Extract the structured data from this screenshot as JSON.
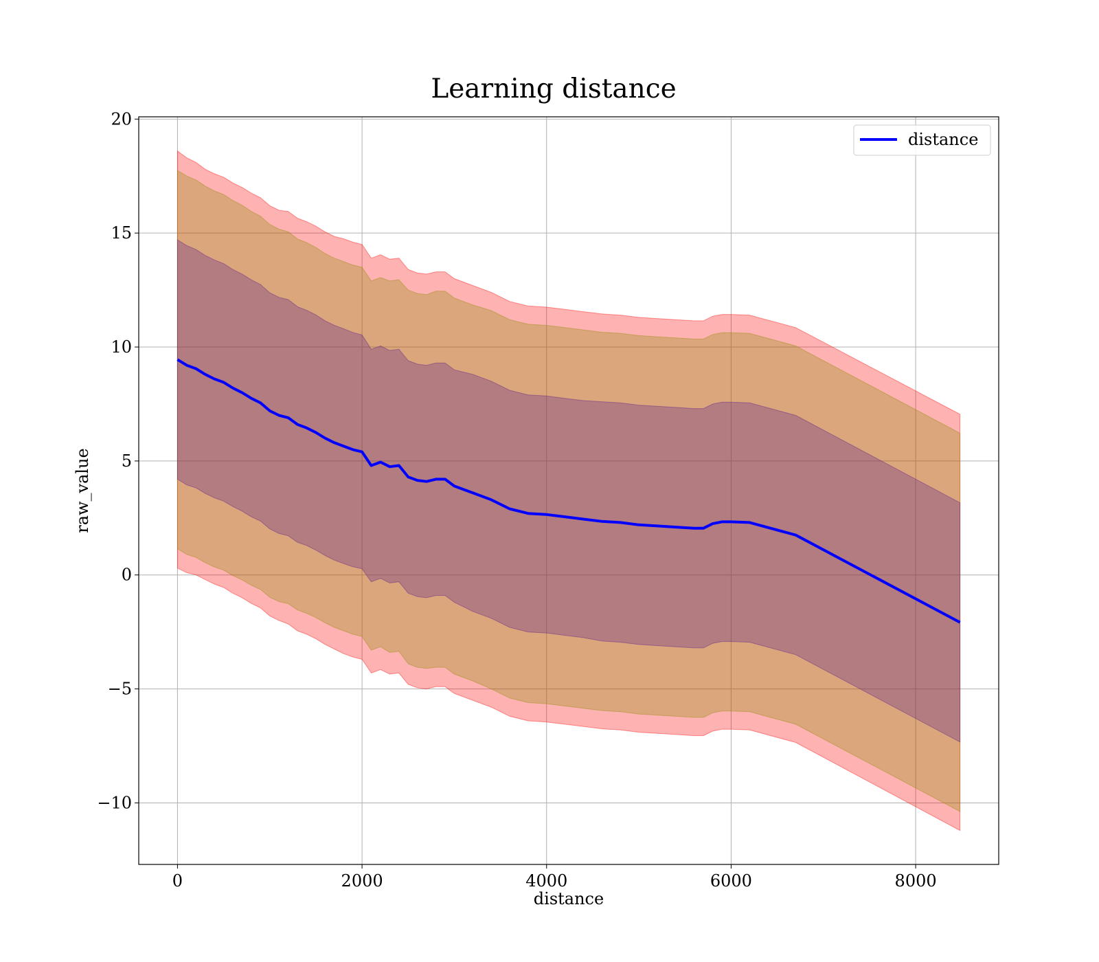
{
  "chart_data": {
    "type": "line",
    "title": "Learning distance",
    "xlabel": "distance",
    "ylabel": "raw_value",
    "xlim": [
      -420,
      8900
    ],
    "ylim": [
      -12.7,
      20.1
    ],
    "xticks": [
      0,
      2000,
      4000,
      6000,
      8000
    ],
    "xtick_labels": [
      "0",
      "2000",
      "4000",
      "6000",
      "8000"
    ],
    "yticks": [
      -10,
      -5,
      0,
      5,
      10,
      15,
      20
    ],
    "ytick_labels": [
      "−10",
      "−5",
      "0",
      "5",
      "10",
      "15",
      "20"
    ],
    "grid": true,
    "legend": {
      "position": "top-right",
      "entries": [
        "distance"
      ]
    },
    "colors": {
      "line": "#0000ff",
      "band_outer": "#ff0000",
      "band_mid": "#8b8b00",
      "band_inner": "#551a8b"
    },
    "x": [
      0,
      100,
      200,
      300,
      400,
      500,
      600,
      700,
      800,
      900,
      1000,
      1100,
      1200,
      1300,
      1400,
      1500,
      1600,
      1700,
      1800,
      1900,
      2000,
      2100,
      2200,
      2300,
      2400,
      2500,
      2600,
      2700,
      2800,
      2900,
      3000,
      3200,
      3400,
      3600,
      3800,
      4000,
      4200,
      4400,
      4600,
      4800,
      5000,
      5200,
      5400,
      5600,
      5700,
      5800,
      5900,
      6000,
      6200,
      6700,
      8480
    ],
    "series": [
      {
        "name": "distance",
        "values": [
          9.45,
          9.2,
          9.05,
          8.8,
          8.6,
          8.45,
          8.2,
          8.0,
          7.75,
          7.55,
          7.2,
          7.0,
          6.9,
          6.6,
          6.45,
          6.25,
          6.0,
          5.8,
          5.65,
          5.5,
          5.4,
          4.8,
          4.95,
          4.75,
          4.8,
          4.3,
          4.15,
          4.1,
          4.2,
          4.2,
          3.9,
          3.6,
          3.3,
          2.9,
          2.7,
          2.65,
          2.55,
          2.45,
          2.35,
          2.3,
          2.2,
          2.15,
          2.1,
          2.05,
          2.05,
          2.25,
          2.33,
          2.33,
          2.3,
          1.75,
          -2.08
        ],
        "band_1std": [
          5.25,
          5.25,
          5.23,
          5.22,
          5.22,
          5.21,
          5.2,
          5.2,
          5.2,
          5.19,
          5.18,
          5.18,
          5.18,
          5.17,
          5.16,
          5.16,
          5.15,
          5.15,
          5.15,
          5.14,
          5.13,
          5.1,
          5.1,
          5.1,
          5.1,
          5.1,
          5.1,
          5.1,
          5.1,
          5.1,
          5.1,
          5.2,
          5.2,
          5.2,
          5.2,
          5.2,
          5.2,
          5.2,
          5.25,
          5.25,
          5.25,
          5.25,
          5.25,
          5.25,
          5.25,
          5.25,
          5.25,
          5.25,
          5.25,
          5.25,
          5.25
        ],
        "band_2std": [
          8.3,
          8.3,
          8.28,
          8.26,
          8.25,
          8.24,
          8.23,
          8.22,
          8.2,
          8.19,
          8.18,
          8.17,
          8.16,
          8.14,
          8.13,
          8.12,
          8.1,
          8.1,
          8.1,
          8.1,
          8.1,
          8.1,
          8.1,
          8.15,
          8.15,
          8.2,
          8.2,
          8.2,
          8.25,
          8.25,
          8.25,
          8.25,
          8.3,
          8.3,
          8.3,
          8.3,
          8.3,
          8.3,
          8.3,
          8.3,
          8.3,
          8.3,
          8.3,
          8.3,
          8.3,
          8.3,
          8.3,
          8.3,
          8.3,
          8.3,
          8.3
        ],
        "band_3std": [
          9.15,
          9.1,
          9.05,
          9.0,
          9.0,
          9.0,
          9.0,
          9.0,
          9.0,
          9.0,
          9.0,
          9.0,
          9.05,
          9.05,
          9.05,
          9.05,
          9.05,
          9.05,
          9.1,
          9.1,
          9.1,
          9.1,
          9.1,
          9.1,
          9.1,
          9.1,
          9.1,
          9.1,
          9.1,
          9.1,
          9.1,
          9.1,
          9.1,
          9.1,
          9.1,
          9.1,
          9.1,
          9.1,
          9.1,
          9.1,
          9.1,
          9.1,
          9.1,
          9.1,
          9.1,
          9.1,
          9.1,
          9.1,
          9.1,
          9.1,
          9.13
        ]
      }
    ]
  }
}
